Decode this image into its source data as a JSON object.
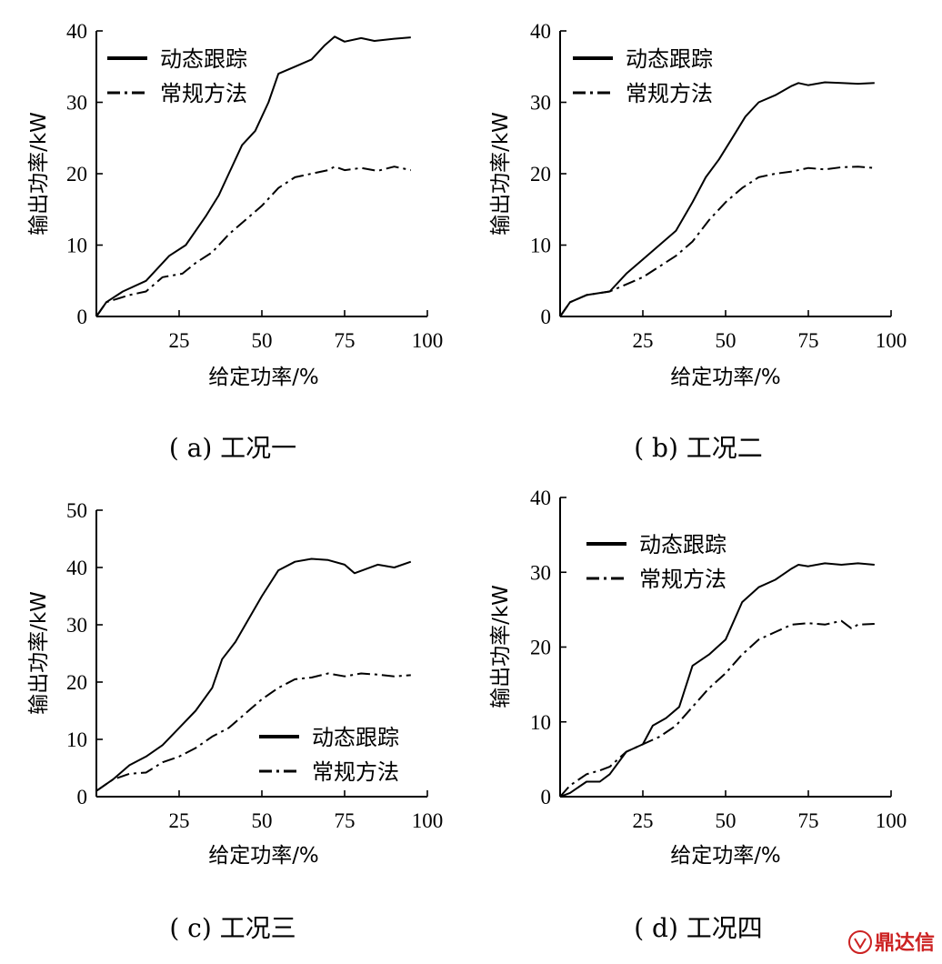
{
  "colors": {
    "line": "#000000",
    "watermark": "#cc2222"
  },
  "watermark": "鼎达信",
  "chart_data": [
    {
      "type": "line",
      "caption": "( a) 工况一",
      "xlabel": "给定功率/%",
      "ylabel": "输出功率/kW",
      "xlim": [
        0,
        100
      ],
      "ylim": [
        0,
        40
      ],
      "xticks": [
        25,
        50,
        75,
        100
      ],
      "yticks": [
        0,
        10,
        20,
        30,
        40
      ],
      "legend_position": "top-left",
      "series": [
        {
          "name": "动态跟踪",
          "style": "solid",
          "x": [
            0,
            3,
            8,
            15,
            22,
            27,
            33,
            37,
            40,
            44,
            48,
            52,
            55,
            60,
            65,
            69,
            72,
            75,
            80,
            84,
            90,
            95
          ],
          "y": [
            0,
            2,
            3.5,
            5,
            8.5,
            10,
            14,
            17,
            20,
            24,
            26,
            30,
            34,
            35,
            36,
            38,
            39.2,
            38.5,
            39,
            38.6,
            38.9,
            39.1
          ]
        },
        {
          "name": "常规方法",
          "style": "dashdot",
          "x": [
            0,
            3,
            10,
            15,
            20,
            26,
            30,
            35,
            40,
            45,
            50,
            55,
            60,
            65,
            70,
            72,
            75,
            80,
            85,
            90,
            95
          ],
          "y": [
            0,
            2,
            3,
            3.5,
            5.5,
            6,
            7.5,
            9,
            11.5,
            13.5,
            15.5,
            18,
            19.5,
            20,
            20.5,
            21,
            20.5,
            20.8,
            20.4,
            21,
            20.5
          ]
        }
      ]
    },
    {
      "type": "line",
      "caption": "( b) 工况二",
      "xlabel": "给定功率/%",
      "ylabel": "输出功率/kW",
      "xlim": [
        0,
        100
      ],
      "ylim": [
        0,
        40
      ],
      "xticks": [
        25,
        50,
        75,
        100
      ],
      "yticks": [
        0,
        10,
        20,
        30,
        40
      ],
      "legend_position": "top-left",
      "series": [
        {
          "name": "动态跟踪",
          "style": "solid",
          "x": [
            0,
            3,
            8,
            15,
            20,
            25,
            30,
            35,
            40,
            44,
            48,
            52,
            56,
            60,
            65,
            70,
            72,
            75,
            80,
            85,
            90,
            95
          ],
          "y": [
            0,
            2,
            3,
            3.5,
            6,
            8,
            10,
            12,
            16,
            19.5,
            22,
            25,
            28,
            30,
            31,
            32.3,
            32.7,
            32.4,
            32.8,
            32.7,
            32.6,
            32.7
          ]
        },
        {
          "name": "常规方法",
          "style": "dashdot",
          "x": [
            0,
            3,
            8,
            15,
            20,
            25,
            30,
            35,
            40,
            45,
            50,
            55,
            60,
            65,
            70,
            75,
            80,
            85,
            90,
            95
          ],
          "y": [
            0,
            2,
            3,
            3.5,
            4.5,
            5.5,
            7,
            8.5,
            10.5,
            13.5,
            16,
            18,
            19.5,
            20,
            20.3,
            20.8,
            20.6,
            20.9,
            21,
            20.8
          ]
        }
      ]
    },
    {
      "type": "line",
      "caption": "( c) 工况三",
      "xlabel": "给定功率/%",
      "ylabel": "输出功率/kW",
      "xlim": [
        0,
        100
      ],
      "ylim": [
        0,
        50
      ],
      "xticks": [
        25,
        50,
        75,
        100
      ],
      "yticks": [
        0,
        10,
        20,
        30,
        40,
        50
      ],
      "legend_position": "bottom-right",
      "series": [
        {
          "name": "动态跟踪",
          "style": "solid",
          "x": [
            0,
            5,
            10,
            15,
            20,
            25,
            30,
            35,
            38,
            42,
            46,
            50,
            55,
            60,
            65,
            70,
            75,
            78,
            85,
            90,
            95
          ],
          "y": [
            1,
            3,
            5.5,
            7,
            9,
            12,
            15,
            19,
            24,
            27,
            31,
            35,
            39.5,
            41,
            41.5,
            41.3,
            40.5,
            39,
            40.5,
            40,
            41
          ]
        },
        {
          "name": "常规方法",
          "style": "dashdot",
          "x": [
            0,
            5,
            10,
            15,
            20,
            25,
            30,
            35,
            40,
            45,
            50,
            55,
            60,
            65,
            70,
            75,
            80,
            85,
            90,
            95
          ],
          "y": [
            1,
            3,
            4,
            4.2,
            6,
            7,
            8.5,
            10.5,
            12,
            14.5,
            17,
            19,
            20.5,
            20.8,
            21.5,
            21,
            21.5,
            21.3,
            21,
            21.2
          ]
        }
      ]
    },
    {
      "type": "line",
      "caption": "( d) 工况四",
      "xlabel": "给定功率/%",
      "ylabel": "输出功率/kW",
      "xlim": [
        0,
        100
      ],
      "ylim": [
        0,
        40
      ],
      "xticks": [
        25,
        50,
        75,
        100
      ],
      "yticks": [
        0,
        10,
        20,
        30,
        40
      ],
      "legend_position": "top-left",
      "series": [
        {
          "name": "动态跟踪",
          "style": "solid",
          "x": [
            0,
            3,
            8,
            12,
            15,
            20,
            25,
            28,
            32,
            36,
            40,
            45,
            50,
            55,
            60,
            65,
            70,
            72,
            75,
            80,
            85,
            90,
            95
          ],
          "y": [
            0,
            0.5,
            2,
            2,
            3,
            6,
            7,
            9.5,
            10.5,
            12,
            17.5,
            19,
            21,
            26,
            28,
            29,
            30.5,
            31,
            30.8,
            31.2,
            31,
            31.2,
            31
          ]
        },
        {
          "name": "常规方法",
          "style": "dashdot",
          "x": [
            0,
            3,
            8,
            12,
            15,
            20,
            25,
            30,
            35,
            40,
            45,
            50,
            55,
            60,
            65,
            70,
            75,
            80,
            85,
            88,
            90,
            95
          ],
          "y": [
            0,
            1.5,
            3,
            3.5,
            4,
            6,
            7,
            8,
            9.5,
            12,
            14.5,
            16.5,
            19,
            21,
            22,
            23,
            23.2,
            23,
            23.5,
            22.5,
            23,
            23.1
          ]
        }
      ]
    }
  ]
}
